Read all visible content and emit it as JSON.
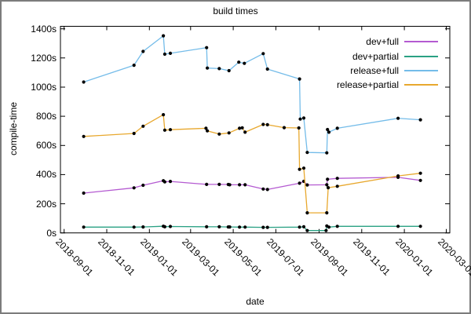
{
  "window": {
    "background": "#ffffff",
    "frame_color": "#7c7c7c",
    "text_color": "#000000",
    "marker_color": "#000000"
  },
  "chart_data": {
    "type": "line",
    "title": "build times",
    "xlabel": "date",
    "ylabel": "compile-time",
    "grid": false,
    "legend_position": "top-right-inside",
    "ylim": [
      0,
      1400
    ],
    "xlim": [
      "2018-08-27",
      "2020-03-06"
    ],
    "y_ticks": [
      {
        "value": 0,
        "label": "0s"
      },
      {
        "value": 200,
        "label": "200s"
      },
      {
        "value": 400,
        "label": "400s"
      },
      {
        "value": 600,
        "label": "600s"
      },
      {
        "value": 800,
        "label": "800s"
      },
      {
        "value": 1000,
        "label": "1000s"
      },
      {
        "value": 1200,
        "label": "1200s"
      },
      {
        "value": 1400,
        "label": "1400s"
      }
    ],
    "x_ticks": [
      "2018-09-01",
      "2018-11-01",
      "2019-01-01",
      "2019-03-01",
      "2019-05-01",
      "2019-07-01",
      "2019-09-01",
      "2019-11-01",
      "2020-01-01",
      "2020-03-01"
    ],
    "series": [
      {
        "name": "dev+full",
        "color": "#b45ad1",
        "points": [
          [
            "2018-09-29",
            273
          ],
          [
            "2018-12-10",
            309
          ],
          [
            "2018-12-23",
            327
          ],
          [
            "2019-01-21",
            358
          ],
          [
            "2019-01-23",
            350
          ],
          [
            "2019-01-31",
            353
          ],
          [
            "2019-03-24",
            333
          ],
          [
            "2019-04-11",
            333
          ],
          [
            "2019-04-24",
            332
          ],
          [
            "2019-04-26",
            330
          ],
          [
            "2019-05-10",
            330
          ],
          [
            "2019-05-18",
            330
          ],
          [
            "2019-06-13",
            301
          ],
          [
            "2019-06-19",
            298
          ],
          [
            "2019-08-04",
            341
          ],
          [
            "2019-08-10",
            354
          ],
          [
            "2019-08-15",
            329
          ],
          [
            "2019-09-12",
            330
          ],
          [
            "2019-09-13",
            368
          ],
          [
            "2019-09-27",
            374
          ],
          [
            "2019-12-23",
            381
          ],
          [
            "2020-01-24",
            360
          ]
        ]
      },
      {
        "name": "dev+partial",
        "color": "#2aa184",
        "points": [
          [
            "2018-09-29",
            40
          ],
          [
            "2018-12-10",
            40
          ],
          [
            "2018-12-23",
            41
          ],
          [
            "2019-01-21",
            46
          ],
          [
            "2019-01-23",
            42
          ],
          [
            "2019-01-31",
            44
          ],
          [
            "2019-03-24",
            42
          ],
          [
            "2019-04-11",
            42
          ],
          [
            "2019-04-24",
            41
          ],
          [
            "2019-04-26",
            41
          ],
          [
            "2019-05-10",
            40
          ],
          [
            "2019-05-18",
            40
          ],
          [
            "2019-06-13",
            38
          ],
          [
            "2019-06-19",
            38
          ],
          [
            "2019-08-04",
            40
          ],
          [
            "2019-08-10",
            42
          ],
          [
            "2019-08-15",
            16
          ],
          [
            "2019-09-11",
            16
          ],
          [
            "2019-09-12",
            48
          ],
          [
            "2019-09-15",
            40
          ],
          [
            "2019-09-27",
            45
          ],
          [
            "2019-12-23",
            45
          ],
          [
            "2020-01-24",
            45
          ]
        ]
      },
      {
        "name": "release+full",
        "color": "#74bce9",
        "points": [
          [
            "2018-09-29",
            1035
          ],
          [
            "2018-12-10",
            1150
          ],
          [
            "2018-12-23",
            1245
          ],
          [
            "2019-01-21",
            1352
          ],
          [
            "2019-01-23",
            1226
          ],
          [
            "2019-01-31",
            1232
          ],
          [
            "2019-03-24",
            1271
          ],
          [
            "2019-03-25",
            1131
          ],
          [
            "2019-04-11",
            1127
          ],
          [
            "2019-04-25",
            1113
          ],
          [
            "2019-05-09",
            1171
          ],
          [
            "2019-05-17",
            1163
          ],
          [
            "2019-06-13",
            1230
          ],
          [
            "2019-06-19",
            1124
          ],
          [
            "2019-08-04",
            1056
          ],
          [
            "2019-08-05",
            781
          ],
          [
            "2019-08-10",
            788
          ],
          [
            "2019-08-15",
            552
          ],
          [
            "2019-09-12",
            549
          ],
          [
            "2019-09-13",
            709
          ],
          [
            "2019-09-15",
            691
          ],
          [
            "2019-09-27",
            718
          ],
          [
            "2019-12-23",
            786
          ],
          [
            "2020-01-24",
            776
          ]
        ]
      },
      {
        "name": "release+partial",
        "color": "#e8a82e",
        "points": [
          [
            "2018-09-29",
            662
          ],
          [
            "2018-12-10",
            682
          ],
          [
            "2018-12-23",
            732
          ],
          [
            "2019-01-21",
            811
          ],
          [
            "2019-01-23",
            705
          ],
          [
            "2019-01-31",
            708
          ],
          [
            "2019-03-23",
            718
          ],
          [
            "2019-03-25",
            700
          ],
          [
            "2019-04-11",
            678
          ],
          [
            "2019-04-25",
            686
          ],
          [
            "2019-05-10",
            718
          ],
          [
            "2019-05-14",
            721
          ],
          [
            "2019-05-18",
            691
          ],
          [
            "2019-06-13",
            744
          ],
          [
            "2019-06-19",
            742
          ],
          [
            "2019-07-13",
            722
          ],
          [
            "2019-08-03",
            720
          ],
          [
            "2019-08-04",
            436
          ],
          [
            "2019-08-10",
            444
          ],
          [
            "2019-08-15",
            138
          ],
          [
            "2019-09-12",
            138
          ],
          [
            "2019-09-14",
            310
          ],
          [
            "2019-09-27",
            320
          ],
          [
            "2019-12-23",
            391
          ],
          [
            "2020-01-24",
            409
          ]
        ]
      }
    ]
  }
}
